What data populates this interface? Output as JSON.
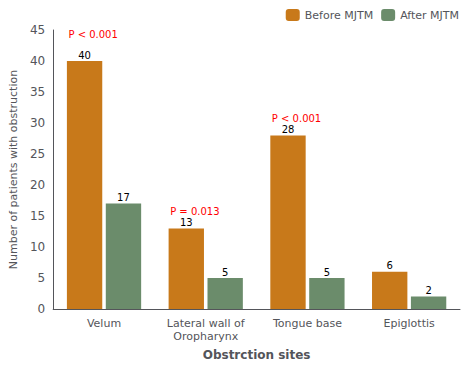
{
  "chart_data": {
    "type": "bar",
    "categories": [
      "Velum",
      "Lateral wall of\nOropharynx",
      "Tongue base",
      "Epiglottis"
    ],
    "series": [
      {
        "name": "Before MJTM",
        "color": "#C8791A",
        "values": [
          40,
          13,
          28,
          6
        ]
      },
      {
        "name": "After MJTM",
        "color": "#6B8C6B",
        "values": [
          17,
          5,
          5,
          2
        ]
      }
    ],
    "xlabel": "Obstrction sites",
    "ylabel": "Number of patients with obstruction",
    "ylim": [
      0,
      45
    ],
    "yticks": [
      0,
      5,
      10,
      15,
      20,
      25,
      30,
      35,
      40,
      45
    ],
    "grid": false,
    "legend": "upper right",
    "data_labels": true,
    "annotations": [
      {
        "text": "P < 0.001",
        "category": "Velum",
        "y": 43.5,
        "color": "red"
      },
      {
        "text": "P = 0.013",
        "category": "Lateral wall of\nOropharynx",
        "y": 15.0,
        "color": "red"
      },
      {
        "text": "P < 0.001",
        "category": "Tongue base",
        "y": 30.0,
        "color": "red"
      }
    ]
  }
}
